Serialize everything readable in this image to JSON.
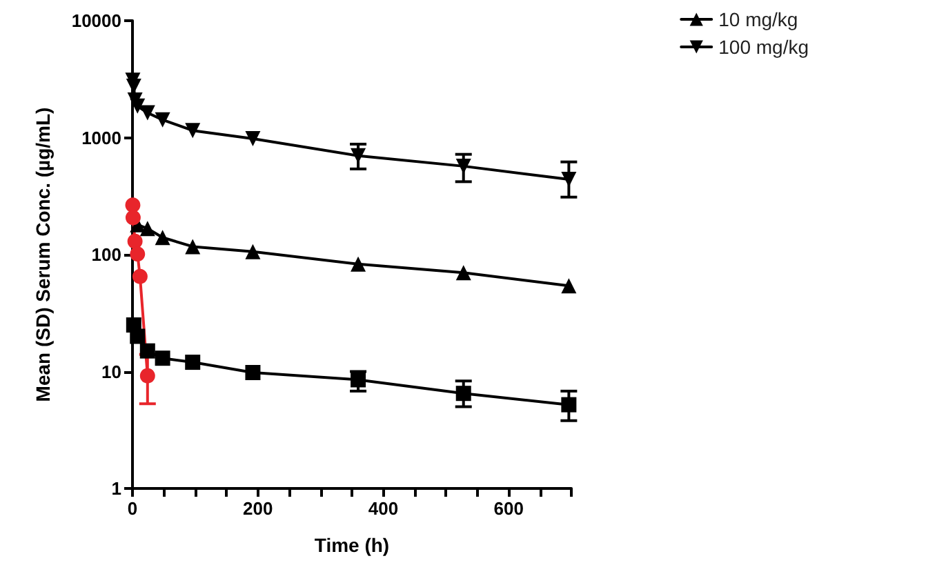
{
  "chart_data": {
    "type": "line",
    "xlabel": "Time (h)",
    "ylabel": "Mean (SD) Serum Conc. (µg/mL)",
    "xlim": [
      0,
      700
    ],
    "xticks": [
      0,
      {
        "value": 50,
        "label": null
      },
      {
        "value": 100,
        "label": null
      },
      {
        "value": 150,
        "label": null
      },
      200,
      {
        "value": 250,
        "label": null
      },
      {
        "value": 300,
        "label": null
      },
      {
        "value": 350,
        "label": null
      },
      400,
      {
        "value": 450,
        "label": null
      },
      {
        "value": 500,
        "label": null
      },
      {
        "value": 550,
        "label": null
      },
      600,
      {
        "value": 650,
        "label": null
      },
      {
        "value": 700,
        "label": null
      }
    ],
    "ylim": [
      1,
      10000
    ],
    "yticks": [
      1,
      10,
      100,
      1000,
      10000
    ],
    "log": "y",
    "legend": "top right",
    "grid": false,
    "line_style": "solid",
    "series": [
      {
        "color": "#000000",
        "marker": "square",
        "x": [
          2,
          8,
          24,
          48,
          96,
          192,
          360,
          528,
          696
        ],
        "values": [
          25,
          20,
          15,
          13,
          12,
          9.8,
          8.5,
          6.5,
          5.2
        ],
        "errors": [
          null,
          null,
          null,
          null,
          null,
          null,
          [
            6.8,
            10
          ],
          [
            5,
            8.3
          ],
          [
            3.8,
            6.8
          ]
        ]
      },
      {
        "name": "10 mg/kg",
        "color": "#000000",
        "marker": "triangle",
        "x": [
          8,
          24,
          48,
          96,
          192,
          360,
          528,
          696
        ],
        "values": [
          180,
          167,
          140,
          117,
          106,
          83,
          70,
          54
        ]
      },
      {
        "name": "100 mg/kg",
        "color": "#000000",
        "marker": "triangle-down",
        "x": [
          0.5,
          2,
          4,
          8,
          24,
          48,
          96,
          192,
          360,
          528,
          696
        ],
        "values": [
          3100,
          2750,
          2100,
          1860,
          1630,
          1420,
          1150,
          980,
          700,
          570,
          440
        ],
        "errors": [
          null,
          null,
          null,
          null,
          null,
          null,
          null,
          null,
          [
            540,
            880
          ],
          [
            420,
            720
          ],
          [
            310,
            620
          ]
        ]
      },
      {
        "color": "#e8252b",
        "marker": "circle",
        "x": [
          0.5,
          1,
          4,
          8,
          12,
          24
        ],
        "values": [
          265,
          207,
          130,
          101,
          65,
          9.2
        ],
        "errors": [
          null,
          null,
          null,
          null,
          null,
          [
            5.3,
            14
          ]
        ]
      }
    ]
  }
}
